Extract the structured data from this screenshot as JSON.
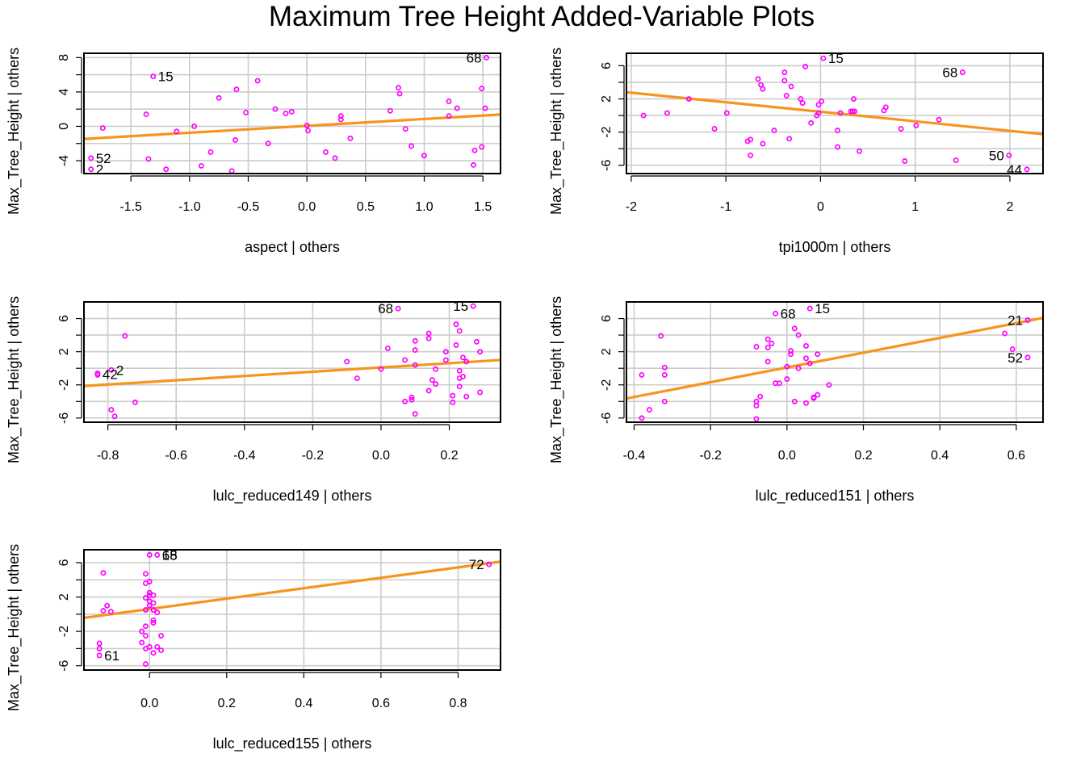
{
  "title": "Maximum Tree Height Added-Variable Plots",
  "colors": {
    "points": "#ff00ff",
    "line": "#f7941d",
    "grid": "#cccccc",
    "frame": "#000000"
  },
  "chart_data": [
    {
      "type": "scatter",
      "xlabel": "aspect | others",
      "ylabel": "Max_Tree_Height  | others",
      "xlim": [
        -1.9,
        1.65
      ],
      "ylim": [
        -5.5,
        8.5
      ],
      "xticks": [
        -1.5,
        -1.0,
        -0.5,
        0.0,
        0.5,
        1.0,
        1.5
      ],
      "xticklabels": [
        "-1.5",
        "-1.0",
        "-0.5",
        "0.0",
        "0.5",
        "1.0",
        "1.5"
      ],
      "yticks": [
        -4,
        0,
        4,
        8
      ],
      "yticklabels": [
        "-4",
        "0",
        "4",
        "8"
      ],
      "ygrid": [
        -6,
        -4,
        -2,
        0,
        2,
        4,
        6,
        8
      ],
      "fit": {
        "intercept": 0.05,
        "slope": 0.8
      },
      "points": [
        [
          -1.84,
          -3.7
        ],
        [
          -1.84,
          -5.0
        ],
        [
          -1.74,
          -0.2
        ],
        [
          -1.35,
          -3.8
        ],
        [
          -1.37,
          1.4
        ],
        [
          -1.31,
          5.8
        ],
        [
          -1.2,
          -5.0
        ],
        [
          -1.11,
          -0.6
        ],
        [
          -0.96,
          0.0
        ],
        [
          -0.9,
          -4.6
        ],
        [
          -0.82,
          -3.0
        ],
        [
          -0.75,
          3.3
        ],
        [
          -0.64,
          -5.2
        ],
        [
          -0.6,
          4.3
        ],
        [
          -0.61,
          -1.6
        ],
        [
          -0.52,
          1.6
        ],
        [
          -0.42,
          5.3
        ],
        [
          -0.33,
          -2.0
        ],
        [
          -0.27,
          2.0
        ],
        [
          -0.18,
          1.5
        ],
        [
          -0.13,
          1.7
        ],
        [
          0.0,
          0.1
        ],
        [
          0.01,
          -0.5
        ],
        [
          0.16,
          -3.0
        ],
        [
          0.24,
          -3.7
        ],
        [
          0.29,
          0.8
        ],
        [
          0.29,
          1.2
        ],
        [
          0.37,
          -1.4
        ],
        [
          0.71,
          1.8
        ],
        [
          0.78,
          4.5
        ],
        [
          0.79,
          3.8
        ],
        [
          0.84,
          -0.3
        ],
        [
          0.89,
          -2.3
        ],
        [
          1.0,
          -3.4
        ],
        [
          1.21,
          2.9
        ],
        [
          1.21,
          1.2
        ],
        [
          1.28,
          2.1
        ],
        [
          1.42,
          -4.5
        ],
        [
          1.43,
          -2.8
        ],
        [
          1.49,
          -2.4
        ],
        [
          1.49,
          4.4
        ],
        [
          1.52,
          2.1
        ],
        [
          1.53,
          8.0
        ]
      ],
      "labels": [
        {
          "text": "68",
          "x": 1.53,
          "y": 8.0,
          "side": "left"
        },
        {
          "text": "15",
          "x": -1.31,
          "y": 5.8,
          "side": "right"
        },
        {
          "text": "52",
          "x": -1.84,
          "y": -3.7,
          "side": "right"
        },
        {
          "text": "2",
          "x": -1.84,
          "y": -5.0,
          "side": "right"
        }
      ]
    },
    {
      "type": "scatter",
      "xlabel": "tpi1000m | others",
      "ylabel": "Max_Tree_Height  | others",
      "xlim": [
        -2.05,
        2.35
      ],
      "ylim": [
        -7.0,
        7.5
      ],
      "xticks": [
        -2,
        -1,
        0,
        1,
        2
      ],
      "xticklabels": [
        "-2",
        "-1",
        "0",
        "1",
        "2"
      ],
      "yticks": [
        -6,
        -2,
        2,
        6
      ],
      "yticklabels": [
        "-6",
        "-2",
        "2",
        "6"
      ],
      "ygrid": [
        -6,
        -4,
        -2,
        0,
        2,
        4,
        6
      ],
      "fit": {
        "intercept": 0.45,
        "slope": -1.15
      },
      "points": [
        [
          -1.87,
          0.0
        ],
        [
          -1.62,
          0.3
        ],
        [
          -1.39,
          2.0
        ],
        [
          -1.12,
          -1.6
        ],
        [
          -0.99,
          0.3
        ],
        [
          -0.77,
          -3.1
        ],
        [
          -0.74,
          -4.8
        ],
        [
          -0.74,
          -2.9
        ],
        [
          -0.66,
          4.4
        ],
        [
          -0.63,
          3.7
        ],
        [
          -0.61,
          3.2
        ],
        [
          -0.61,
          -3.4
        ],
        [
          -0.49,
          -1.8
        ],
        [
          -0.38,
          5.2
        ],
        [
          -0.38,
          4.2
        ],
        [
          -0.36,
          2.4
        ],
        [
          -0.33,
          -2.8
        ],
        [
          -0.31,
          3.5
        ],
        [
          -0.21,
          2.0
        ],
        [
          -0.19,
          1.5
        ],
        [
          -0.16,
          5.9
        ],
        [
          -0.1,
          -0.9
        ],
        [
          -0.04,
          0.0
        ],
        [
          -0.02,
          0.3
        ],
        [
          -0.02,
          1.3
        ],
        [
          0.01,
          1.7
        ],
        [
          0.03,
          6.9
        ],
        [
          0.18,
          -1.8
        ],
        [
          0.18,
          -3.8
        ],
        [
          0.21,
          0.3
        ],
        [
          0.32,
          0.5
        ],
        [
          0.34,
          0.5
        ],
        [
          0.35,
          2.0
        ],
        [
          0.36,
          0.5
        ],
        [
          0.41,
          -4.3
        ],
        [
          0.67,
          0.6
        ],
        [
          0.69,
          1.0
        ],
        [
          0.85,
          -1.6
        ],
        [
          0.89,
          -5.5
        ],
        [
          1.01,
          -1.2
        ],
        [
          1.25,
          -0.5
        ],
        [
          1.43,
          -5.4
        ],
        [
          1.5,
          5.2
        ],
        [
          1.99,
          -4.8
        ],
        [
          2.18,
          -6.5
        ]
      ],
      "labels": [
        {
          "text": "15",
          "x": 0.03,
          "y": 6.9,
          "side": "right"
        },
        {
          "text": "68",
          "x": 1.5,
          "y": 5.2,
          "side": "left"
        },
        {
          "text": "50",
          "x": 1.99,
          "y": -4.8,
          "side": "left"
        },
        {
          "text": "44",
          "x": 2.18,
          "y": -6.5,
          "side": "left"
        }
      ]
    },
    {
      "type": "scatter",
      "xlabel": "lulc_reduced149 | others",
      "ylabel": "Max_Tree_Height  | others",
      "xlim": [
        -0.87,
        0.35
      ],
      "ylim": [
        -6.5,
        8.0
      ],
      "xticks": [
        -0.8,
        -0.6,
        -0.4,
        -0.2,
        0.0,
        0.2
      ],
      "xticklabels": [
        "-0.8",
        "-0.6",
        "-0.4",
        "-0.2",
        "0.0",
        "0.2"
      ],
      "yticks": [
        -6,
        -2,
        2,
        6
      ],
      "yticklabels": [
        "-6",
        "-2",
        "2",
        "6"
      ],
      "ygrid": [
        -6,
        -4,
        -2,
        0,
        2,
        4,
        6
      ],
      "fit": {
        "intercept": 0.1,
        "slope": 2.57
      },
      "points": [
        [
          -0.83,
          -0.8
        ],
        [
          -0.83,
          -0.6
        ],
        [
          -0.79,
          -0.2
        ],
        [
          -0.79,
          -5.0
        ],
        [
          -0.78,
          -5.8
        ],
        [
          -0.75,
          3.9
        ],
        [
          -0.72,
          -4.1
        ],
        [
          -0.1,
          0.8
        ],
        [
          -0.07,
          -1.2
        ],
        [
          0.0,
          -0.1
        ],
        [
          0.02,
          2.4
        ],
        [
          0.05,
          7.2
        ],
        [
          0.07,
          1.0
        ],
        [
          0.07,
          -4.0
        ],
        [
          0.09,
          -3.5
        ],
        [
          0.09,
          -3.8
        ],
        [
          0.1,
          -5.5
        ],
        [
          0.1,
          0.4
        ],
        [
          0.1,
          2.2
        ],
        [
          0.1,
          3.3
        ],
        [
          0.14,
          3.6
        ],
        [
          0.14,
          4.2
        ],
        [
          0.14,
          -2.7
        ],
        [
          0.15,
          -1.4
        ],
        [
          0.16,
          -0.1
        ],
        [
          0.16,
          -1.9
        ],
        [
          0.19,
          1.0
        ],
        [
          0.19,
          2.0
        ],
        [
          0.21,
          -3.3
        ],
        [
          0.21,
          -4.1
        ],
        [
          0.22,
          2.8
        ],
        [
          0.22,
          5.3
        ],
        [
          0.23,
          -1.2
        ],
        [
          0.23,
          -0.3
        ],
        [
          0.23,
          -2.2
        ],
        [
          0.23,
          4.5
        ],
        [
          0.24,
          -1.0
        ],
        [
          0.24,
          1.3
        ],
        [
          0.25,
          -3.4
        ],
        [
          0.25,
          0.8
        ],
        [
          0.27,
          7.5
        ],
        [
          0.28,
          3.2
        ],
        [
          0.29,
          2.0
        ],
        [
          0.29,
          -2.9
        ]
      ],
      "labels": [
        {
          "text": "68",
          "x": 0.05,
          "y": 7.2,
          "side": "left"
        },
        {
          "text": "15",
          "x": 0.27,
          "y": 7.5,
          "side": "left"
        },
        {
          "text": "2",
          "x": -0.79,
          "y": -0.2,
          "side": "right"
        },
        {
          "text": "42",
          "x": -0.83,
          "y": -0.7,
          "side": "right"
        }
      ]
    },
    {
      "type": "scatter",
      "xlabel": "lulc_reduced151 | others",
      "ylabel": "Max_Tree_Height  | others",
      "xlim": [
        -0.42,
        0.67
      ],
      "ylim": [
        -6.5,
        8.0
      ],
      "xticks": [
        -0.4,
        -0.2,
        0.0,
        0.2,
        0.4,
        0.6
      ],
      "xticklabels": [
        "-0.4",
        "-0.2",
        "0.0",
        "0.2",
        "0.4",
        "0.6"
      ],
      "yticks": [
        -6,
        -2,
        2,
        6
      ],
      "yticklabels": [
        "-6",
        "-2",
        "2",
        "6"
      ],
      "ygrid": [
        -6,
        -4,
        -2,
        0,
        2,
        4,
        6
      ],
      "fit": {
        "intercept": 0.1,
        "slope": 8.9
      },
      "points": [
        [
          -0.38,
          -0.8
        ],
        [
          -0.38,
          -6.0
        ],
        [
          -0.36,
          -5.0
        ],
        [
          -0.33,
          3.9
        ],
        [
          -0.32,
          -0.8
        ],
        [
          -0.32,
          -4.0
        ],
        [
          -0.32,
          0.1
        ],
        [
          -0.08,
          2.6
        ],
        [
          -0.08,
          -6.1
        ],
        [
          -0.08,
          -4.0
        ],
        [
          -0.08,
          -4.5
        ],
        [
          -0.07,
          -3.4
        ],
        [
          -0.05,
          0.8
        ],
        [
          -0.05,
          2.5
        ],
        [
          -0.05,
          3.5
        ],
        [
          -0.04,
          3.0
        ],
        [
          -0.03,
          6.6
        ],
        [
          -0.03,
          -1.8
        ],
        [
          -0.02,
          -1.8
        ],
        [
          0.0,
          0.2
        ],
        [
          0.0,
          -1.3
        ],
        [
          0.01,
          2.1
        ],
        [
          0.01,
          1.7
        ],
        [
          0.02,
          4.8
        ],
        [
          0.02,
          -4.0
        ],
        [
          0.03,
          4.0
        ],
        [
          0.03,
          0.0
        ],
        [
          0.05,
          2.7
        ],
        [
          0.05,
          -4.2
        ],
        [
          0.05,
          1.2
        ],
        [
          0.06,
          0.6
        ],
        [
          0.06,
          7.2
        ],
        [
          0.07,
          -3.6
        ],
        [
          0.07,
          -3.5
        ],
        [
          0.08,
          1.7
        ],
        [
          0.08,
          -3.2
        ],
        [
          0.11,
          -2.0
        ],
        [
          0.57,
          4.2
        ],
        [
          0.59,
          2.3
        ],
        [
          0.63,
          5.8
        ],
        [
          0.63,
          1.3
        ]
      ],
      "labels": [
        {
          "text": "68",
          "x": -0.03,
          "y": 6.6,
          "side": "right"
        },
        {
          "text": "15",
          "x": 0.06,
          "y": 7.2,
          "side": "right"
        },
        {
          "text": "21",
          "x": 0.63,
          "y": 5.8,
          "side": "left"
        },
        {
          "text": "52",
          "x": 0.63,
          "y": 1.3,
          "side": "left"
        }
      ]
    },
    {
      "type": "scatter",
      "xlabel": "lulc_reduced155 | others",
      "ylabel": "Max_Tree_Height  | others",
      "xlim": [
        -0.17,
        0.91
      ],
      "ylim": [
        -6.5,
        7.5
      ],
      "xticks": [
        0.0,
        0.2,
        0.4,
        0.6,
        0.8
      ],
      "xticklabels": [
        "0.0",
        "0.2",
        "0.4",
        "0.6",
        "0.8"
      ],
      "yticks": [
        -6,
        -2,
        2,
        6
      ],
      "yticklabels": [
        "-6",
        "-2",
        "2",
        "6"
      ],
      "ygrid": [
        -6,
        -4,
        -2,
        0,
        2,
        4,
        6
      ],
      "fit": {
        "intercept": 0.6,
        "slope": 6.06
      },
      "points": [
        [
          -0.13,
          -3.4
        ],
        [
          -0.13,
          -4.0
        ],
        [
          -0.13,
          -4.8
        ],
        [
          -0.12,
          4.8
        ],
        [
          -0.12,
          0.4
        ],
        [
          -0.11,
          1.0
        ],
        [
          -0.1,
          0.3
        ],
        [
          -0.02,
          -2.0
        ],
        [
          -0.02,
          -3.3
        ],
        [
          -0.01,
          -2.5
        ],
        [
          -0.01,
          -1.4
        ],
        [
          -0.01,
          -4.0
        ],
        [
          -0.01,
          3.6
        ],
        [
          -0.01,
          0.5
        ],
        [
          -0.01,
          4.7
        ],
        [
          -0.01,
          1.9
        ],
        [
          -0.01,
          -5.8
        ],
        [
          0.0,
          3.8
        ],
        [
          0.0,
          2.5
        ],
        [
          0.0,
          1.5
        ],
        [
          0.0,
          1.0
        ],
        [
          0.0,
          -3.8
        ],
        [
          0.0,
          2.2
        ],
        [
          0.0,
          6.9
        ],
        [
          0.01,
          1.3
        ],
        [
          0.01,
          -1.0
        ],
        [
          0.01,
          2.2
        ],
        [
          0.01,
          0.5
        ],
        [
          0.01,
          -0.7
        ],
        [
          0.01,
          -4.5
        ],
        [
          0.02,
          0.2
        ],
        [
          0.02,
          -3.8
        ],
        [
          0.02,
          6.9
        ],
        [
          0.03,
          -4.2
        ],
        [
          0.03,
          -2.5
        ],
        [
          0.88,
          5.8
        ]
      ],
      "labels": [
        {
          "text": "15",
          "x": 0.02,
          "y": 6.9,
          "side": "right"
        },
        {
          "text": "68",
          "x": 0.02,
          "y": 6.9,
          "side": "right"
        },
        {
          "text": "72",
          "x": 0.88,
          "y": 5.8,
          "side": "left"
        },
        {
          "text": "61",
          "x": -0.13,
          "y": -4.8,
          "side": "right"
        }
      ]
    }
  ]
}
